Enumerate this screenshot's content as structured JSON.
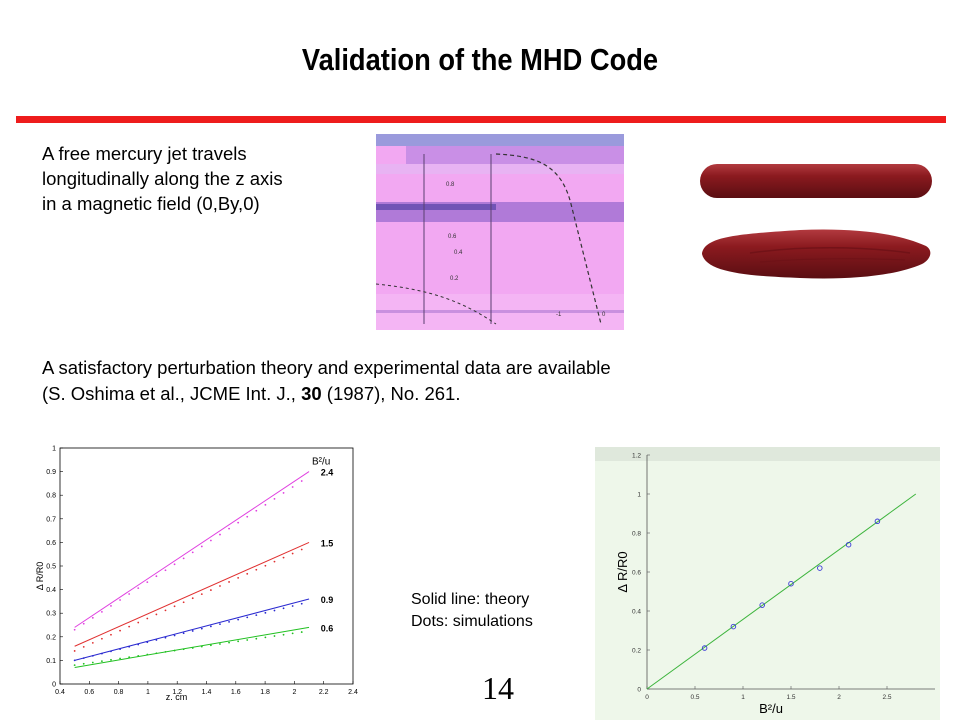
{
  "slide": {
    "title": "Validation of the MHD Code",
    "intro_lines": [
      "A free mercury jet travels",
      "longitudinally along the z axis",
      "in a magnetic field  (0,By,0)"
    ],
    "reference": {
      "line1": "A satisfactory perturbation theory and experimental data are available",
      "line2_prefix": "(S. Oshima et al.,  JCME Int. J., ",
      "line2_bold": "30",
      "line2_suffix": " (1987), No. 261."
    },
    "legend": {
      "theory": "Solid line: theory",
      "dots": "Dots: simulations"
    },
    "page_number": "14",
    "colors": {
      "accent_rule": "#ee1c1c",
      "jet_color": "#8b1a1f"
    }
  },
  "chart_data": [
    {
      "type": "line",
      "xlabel": "z, cm",
      "ylabel": "Δ R/R0",
      "xlim": [
        0.4,
        2.4
      ],
      "ylim": [
        0,
        1
      ],
      "xticks": [
        "0.4",
        "0.6",
        "0.8",
        "1",
        "1.2",
        "1.4",
        "1.6",
        "1.8",
        "2",
        "2.2",
        "2.4"
      ],
      "yticks": [
        "0",
        "0.1",
        "0.2",
        "0.3",
        "0.4",
        "0.5",
        "0.6",
        "0.7",
        "0.8",
        "0.9",
        "1"
      ],
      "legend_title": "B²/u",
      "series": [
        {
          "name": "2.4",
          "color": "#e040e0",
          "theory": [
            [
              0.5,
              0.24
            ],
            [
              2.1,
              0.9
            ]
          ],
          "dots_start": [
            0.5,
            0.23
          ],
          "dots_end": [
            2.05,
            0.86
          ]
        },
        {
          "name": "1.5",
          "color": "#e03030",
          "theory": [
            [
              0.5,
              0.16
            ],
            [
              2.1,
              0.6
            ]
          ],
          "dots_start": [
            0.5,
            0.14
          ],
          "dots_end": [
            2.05,
            0.57
          ]
        },
        {
          "name": "0.9",
          "color": "#2a2ad0",
          "theory": [
            [
              0.5,
              0.1
            ],
            [
              2.1,
              0.36
            ]
          ],
          "dots_start": [
            0.5,
            0.1
          ],
          "dots_end": [
            2.05,
            0.34
          ]
        },
        {
          "name": "0.6",
          "color": "#20c020",
          "theory": [
            [
              0.5,
              0.07
            ],
            [
              2.1,
              0.24
            ]
          ],
          "dots_start": [
            0.5,
            0.08
          ],
          "dots_end": [
            2.05,
            0.22
          ]
        }
      ]
    },
    {
      "type": "scatter",
      "xlabel": "B²/u",
      "ylabel": "Δ R/R0",
      "xlim": [
        0,
        3
      ],
      "ylim": [
        0,
        1.2
      ],
      "xticks": [
        "0",
        "0.5",
        "1",
        "1.5",
        "2",
        "2.5"
      ],
      "yticks": [
        "0",
        "0.2",
        "0.4",
        "0.6",
        "0.8",
        "1",
        "1.2"
      ],
      "line": [
        [
          0,
          0
        ],
        [
          2.8,
          1.0
        ]
      ],
      "points": {
        "x": [
          0.6,
          0.9,
          1.2,
          1.5,
          1.8,
          2.1,
          2.4
        ],
        "y": [
          0.21,
          0.32,
          0.43,
          0.54,
          0.62,
          0.74,
          0.86
        ]
      }
    }
  ],
  "plot_inset": {
    "tick_labels": [
      "0.8",
      "0.6",
      "0.4",
      "0.2",
      "-1",
      "0"
    ]
  }
}
